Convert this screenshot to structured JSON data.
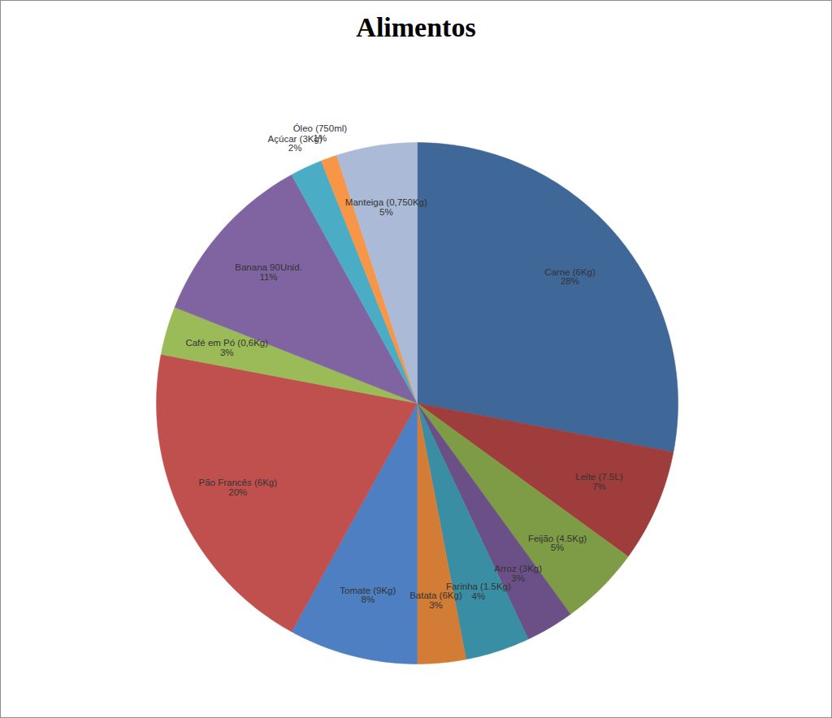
{
  "chart_data": {
    "type": "pie",
    "title": "Alimentos",
    "categories": [
      "Carne (6Kg)",
      "Leite (7.5L)",
      "Feijão (4.5Kg)",
      "Arroz (3Kg)",
      "Farinha (1.5Kg)",
      "Batata (6Kg)",
      "Tomate (9Kg)",
      "Pão Francês (6Kg)",
      "Café em Pó (0,6Kg)",
      "Banana 90Unid.",
      "Açúcar (3Kg)",
      "Óleo (750ml)",
      "Manteiga (0,750Kg)"
    ],
    "values": [
      28,
      7,
      5,
      3,
      4,
      3,
      8,
      20,
      3,
      11,
      2,
      1,
      5
    ],
    "value_labels": [
      "28%",
      "7%",
      "5%",
      "3%",
      "4%",
      "3%",
      "8%",
      "20%",
      "3%",
      "11%",
      "2%",
      "1%",
      "5%"
    ],
    "colors": [
      "#3f6797",
      "#9e3d3b",
      "#7e9b45",
      "#6a5087",
      "#3a8ea3",
      "#d27c36",
      "#4d7fc2",
      "#c0504d",
      "#9bbb59",
      "#8064a2",
      "#4bacc6",
      "#f79646",
      "#aabad7"
    ],
    "data_labels": true
  }
}
